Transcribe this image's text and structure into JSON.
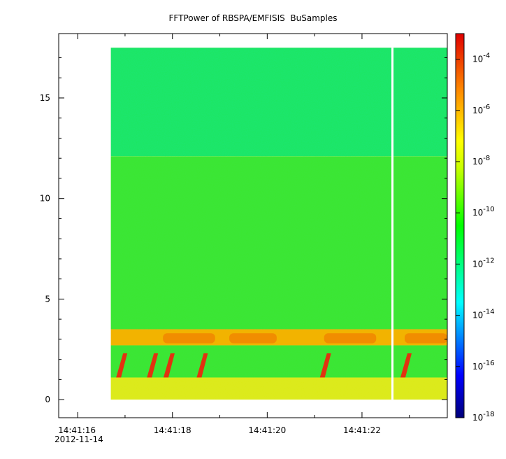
{
  "chart_data": {
    "type": "heatmap",
    "title": "FFTPower of RBSPA/EMFISIS  BuSamples",
    "xlabel": "",
    "ylabel": "",
    "x_date_label": "2012-11-14",
    "x_ticks": [
      "14:41:16",
      "14:41:18",
      "14:41:20",
      "14:41:22"
    ],
    "x_range_seconds": [
      15.6,
      23.8
    ],
    "data_x_range_seconds": [
      16.7,
      23.8
    ],
    "y_ticks": [
      0,
      5,
      10,
      15
    ],
    "ylim": [
      -0.9,
      18.2
    ],
    "y_data_max": 17.5,
    "colorbar": {
      "scale": "log",
      "range": [
        "1e-18",
        "1e-3"
      ],
      "ticks": [
        {
          "base": "10",
          "exp": "-4"
        },
        {
          "base": "10",
          "exp": "-6"
        },
        {
          "base": "10",
          "exp": "-8"
        },
        {
          "base": "10",
          "exp": "-10"
        },
        {
          "base": "10",
          "exp": "-12"
        },
        {
          "base": "10",
          "exp": "-14"
        },
        {
          "base": "10",
          "exp": "-16"
        },
        {
          "base": "10",
          "exp": "-18"
        }
      ]
    },
    "features": {
      "upper_band_y": [
        12.1,
        17.5
      ],
      "upper_band_level": "1e-12",
      "mid_band_y": [
        3.5,
        12.1
      ],
      "mid_band_level": "1e-10",
      "strong_band_y": [
        2.7,
        3.5
      ],
      "strong_band_level": "1e-7",
      "low_band_y": [
        0,
        1.1
      ],
      "low_band_level": "1e-8",
      "burst_times_seconds": [
        16.9,
        17.55,
        17.9,
        18.6,
        21.2,
        22.9
      ],
      "burst_y": [
        1.1,
        2.3
      ],
      "burst_level": "1e-4",
      "data_gap_seconds": 22.65
    },
    "colors": {
      "upper_band": "#1ee673",
      "mid_band": "#3ae63a",
      "strong_band": "#f2b300",
      "low_band": "#dcea1e",
      "burst": "#e23210"
    }
  }
}
